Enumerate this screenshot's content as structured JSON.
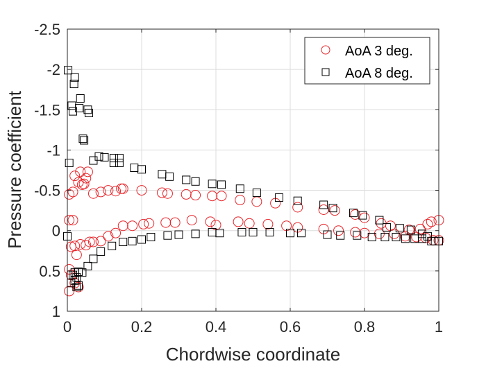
{
  "chart_data": {
    "type": "scatter",
    "title": "",
    "xlabel": "Chordwise coordinate",
    "ylabel": "Pressure coefficient",
    "xlim": [
      0,
      1
    ],
    "ylim": [
      -2.5,
      1
    ],
    "y_reversed": true,
    "xticks": [
      0,
      0.2,
      0.4,
      0.6,
      0.8,
      1
    ],
    "xtick_labels": [
      "0",
      "0.2",
      "0.4",
      "0.6",
      "0.8",
      "1"
    ],
    "yticks": [
      -2.5,
      -2,
      -1.5,
      -1,
      -0.5,
      0,
      0.5,
      1
    ],
    "ytick_labels": [
      "-2.5",
      "-2",
      "-1.5",
      "-1",
      "-0.5",
      "0",
      "0.5",
      "1"
    ],
    "grid": true,
    "legend": {
      "placement": "top-right",
      "entries": [
        "AoA 3 deg.",
        "AoA 8 deg."
      ]
    },
    "series": [
      {
        "name": "AoA 3 deg.",
        "marker": "circle",
        "color": "#e8262b",
        "points": [
          [
            0.005,
            -0.45
          ],
          [
            0.015,
            -0.48
          ],
          [
            0.02,
            -0.68
          ],
          [
            0.03,
            -0.6
          ],
          [
            0.035,
            -0.73
          ],
          [
            0.04,
            -0.57
          ],
          [
            0.045,
            -0.58
          ],
          [
            0.05,
            -0.65
          ],
          [
            0.055,
            -0.73
          ],
          [
            0.07,
            -0.46
          ],
          [
            0.09,
            -0.48
          ],
          [
            0.11,
            -0.5
          ],
          [
            0.13,
            -0.49
          ],
          [
            0.145,
            -0.52
          ],
          [
            0.15,
            -0.52
          ],
          [
            0.2,
            -0.5
          ],
          [
            0.255,
            -0.47
          ],
          [
            0.27,
            -0.46
          ],
          [
            0.32,
            -0.45
          ],
          [
            0.345,
            -0.44
          ],
          [
            0.39,
            -0.43
          ],
          [
            0.415,
            -0.43
          ],
          [
            0.465,
            -0.38
          ],
          [
            0.51,
            -0.36
          ],
          [
            0.56,
            -0.34
          ],
          [
            0.62,
            -0.29
          ],
          [
            0.69,
            -0.26
          ],
          [
            0.72,
            -0.25
          ],
          [
            0.775,
            -0.2
          ],
          [
            0.8,
            -0.16
          ],
          [
            0.845,
            -0.09
          ],
          [
            0.87,
            -0.06
          ],
          [
            0.92,
            -0.01
          ],
          [
            0.95,
            -0.02
          ],
          [
            0.97,
            -0.08
          ],
          [
            0.98,
            -0.11
          ],
          [
            1.0,
            -0.13
          ],
          [
            0.005,
            -0.13
          ],
          [
            0.015,
            -0.13
          ],
          [
            0.01,
            0.2
          ],
          [
            0.02,
            0.19
          ],
          [
            0.025,
            0.3
          ],
          [
            0.035,
            0.17
          ],
          [
            0.05,
            0.18
          ],
          [
            0.06,
            0.14
          ],
          [
            0.07,
            0.14
          ],
          [
            0.09,
            0.13
          ],
          [
            0.11,
            0.07
          ],
          [
            0.13,
            0.03
          ],
          [
            0.15,
            -0.06
          ],
          [
            0.175,
            -0.06
          ],
          [
            0.205,
            -0.08
          ],
          [
            0.22,
            -0.09
          ],
          [
            0.265,
            -0.1
          ],
          [
            0.29,
            -0.1
          ],
          [
            0.335,
            -0.13
          ],
          [
            0.385,
            -0.11
          ],
          [
            0.4,
            -0.07
          ],
          [
            0.46,
            -0.11
          ],
          [
            0.49,
            -0.09
          ],
          [
            0.54,
            -0.08
          ],
          [
            0.59,
            -0.06
          ],
          [
            0.62,
            -0.04
          ],
          [
            0.69,
            -0.02
          ],
          [
            0.73,
            0.0
          ],
          [
            0.775,
            0.02
          ],
          [
            0.8,
            0.03
          ],
          [
            0.84,
            0.04
          ],
          [
            0.88,
            0.04
          ],
          [
            0.91,
            0.07
          ],
          [
            0.94,
            0.08
          ],
          [
            0.965,
            0.09
          ],
          [
            0.985,
            0.12
          ],
          [
            1.0,
            0.12
          ],
          [
            0.005,
            0.48
          ],
          [
            0.01,
            0.55
          ],
          [
            0.005,
            0.75
          ],
          [
            0.02,
            0.65
          ],
          [
            0.03,
            0.7
          ]
        ]
      },
      {
        "name": "AoA 8 deg.",
        "marker": "square",
        "color": "#000000",
        "points": [
          [
            0.002,
            -1.99
          ],
          [
            0.02,
            -1.9
          ],
          [
            0.018,
            -1.82
          ],
          [
            0.012,
            -1.55
          ],
          [
            0.015,
            -1.48
          ],
          [
            0.035,
            -1.64
          ],
          [
            0.032,
            -1.52
          ],
          [
            0.055,
            -1.5
          ],
          [
            0.058,
            -1.46
          ],
          [
            0.042,
            -1.14
          ],
          [
            0.045,
            -1.12
          ],
          [
            0.005,
            -0.84
          ],
          [
            0.07,
            -0.87
          ],
          [
            0.085,
            -0.92
          ],
          [
            0.1,
            -0.91
          ],
          [
            0.125,
            -0.9
          ],
          [
            0.14,
            -0.9
          ],
          [
            0.125,
            -0.84
          ],
          [
            0.14,
            -0.84
          ],
          [
            0.18,
            -0.78
          ],
          [
            0.2,
            -0.76
          ],
          [
            0.255,
            -0.7
          ],
          [
            0.275,
            -0.67
          ],
          [
            0.32,
            -0.63
          ],
          [
            0.345,
            -0.61
          ],
          [
            0.39,
            -0.58
          ],
          [
            0.415,
            -0.57
          ],
          [
            0.465,
            -0.52
          ],
          [
            0.51,
            -0.47
          ],
          [
            0.57,
            -0.41
          ],
          [
            0.62,
            -0.37
          ],
          [
            0.69,
            -0.32
          ],
          [
            0.715,
            -0.28
          ],
          [
            0.77,
            -0.22
          ],
          [
            0.795,
            -0.19
          ],
          [
            0.84,
            -0.13
          ],
          [
            0.86,
            -0.04
          ],
          [
            0.895,
            -0.03
          ],
          [
            0.925,
            -0.01
          ],
          [
            0.955,
            0.04
          ],
          [
            0.97,
            0.07
          ],
          [
            0.99,
            0.13
          ],
          [
            0.0,
            0.07
          ],
          [
            0.015,
            0.55
          ],
          [
            0.02,
            0.52
          ],
          [
            0.025,
            0.58
          ],
          [
            0.03,
            0.51
          ],
          [
            0.04,
            0.52
          ],
          [
            0.055,
            0.44
          ],
          [
            0.07,
            0.35
          ],
          [
            0.09,
            0.26
          ],
          [
            0.12,
            0.19
          ],
          [
            0.15,
            0.14
          ],
          [
            0.175,
            0.13
          ],
          [
            0.2,
            0.11
          ],
          [
            0.225,
            0.08
          ],
          [
            0.27,
            0.06
          ],
          [
            0.3,
            0.05
          ],
          [
            0.345,
            0.04
          ],
          [
            0.39,
            0.02
          ],
          [
            0.41,
            0.03
          ],
          [
            0.47,
            0.02
          ],
          [
            0.5,
            0.02
          ],
          [
            0.545,
            0.02
          ],
          [
            0.6,
            0.03
          ],
          [
            0.63,
            0.03
          ],
          [
            0.7,
            0.05
          ],
          [
            0.735,
            0.06
          ],
          [
            0.78,
            0.06
          ],
          [
            0.82,
            0.08
          ],
          [
            0.855,
            0.08
          ],
          [
            0.885,
            0.08
          ],
          [
            0.91,
            0.1
          ],
          [
            0.935,
            0.1
          ],
          [
            0.955,
            0.1
          ],
          [
            0.98,
            0.13
          ],
          [
            1.0,
            0.13
          ],
          [
            0.01,
            0.65
          ],
          [
            0.02,
            0.62
          ],
          [
            0.025,
            0.7
          ],
          [
            0.03,
            0.68
          ]
        ]
      }
    ]
  }
}
